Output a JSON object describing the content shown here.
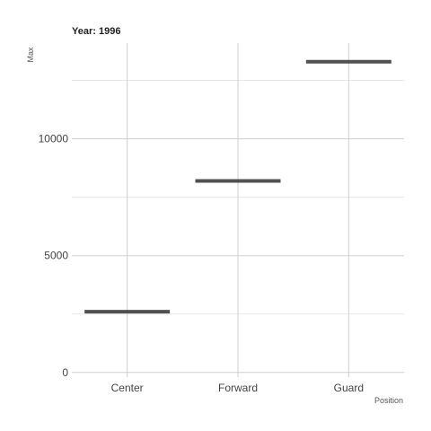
{
  "chart_data": {
    "type": "bar",
    "title": "Year: 1996",
    "xlabel": "Position",
    "ylabel": "Max",
    "categories": [
      "Center",
      "Forward",
      "Guard"
    ],
    "values": [
      2600,
      8200,
      13300
    ],
    "yticks": [
      0,
      5000,
      10000
    ],
    "ylim": [
      -200,
      14100
    ],
    "grid": true,
    "colors": {
      "mark": "#333333",
      "grid": "#cfcfcf"
    }
  }
}
